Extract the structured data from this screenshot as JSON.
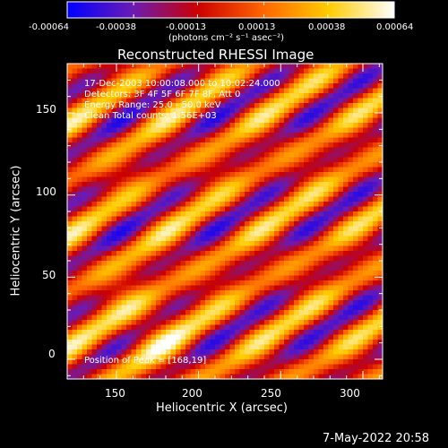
{
  "colorbar": {
    "ticks": [
      "-0.00064",
      "-0.00038",
      "-0.00013",
      "0.00013",
      "0.00038",
      "0.00064"
    ],
    "unit_label": "(photons cm⁻² s⁻¹ asec⁻²)"
  },
  "plot": {
    "title": "Reconstructed RHESSI Image",
    "annotations": [
      "17-Dec-2003 10:00:08.000 to 10:02:24.000",
      "Detectors: 3F 4F 5F 6F 7F 8F, Att 0",
      "Energy Range: 25.0 - 50.0 keV",
      "Clean      Total counts: 1.56E+03"
    ],
    "peak_label": "Position of Peak = [168,19]"
  },
  "footer": {
    "timestamp": "7-May-2022 20:58"
  },
  "chart_data": {
    "type": "heatmap",
    "title": "Reconstructed RHESSI Image",
    "xlabel": "Heliocentric X (arcsec)",
    "ylabel": "Heliocentric Y (arcsec)",
    "xlim": [
      120,
      312
    ],
    "ylim": [
      -12,
      180
    ],
    "x_ticks": [
      150,
      200,
      250,
      300
    ],
    "y_ticks": [
      0,
      50,
      100,
      150
    ],
    "colorbar_range": [
      -0.00064,
      0.00064
    ],
    "colorbar_ticks": [
      -0.00064,
      -0.00038,
      -0.00013,
      0.00013,
      0.00038,
      0.00064
    ],
    "colormap": "rainbow-blue-purple-red-yellow-white",
    "colormap_stops": [
      "#0000ff",
      "#6a1bb5",
      "#cc0000",
      "#ff6600",
      "#ffcc00",
      "#ffffff"
    ],
    "peak_position": [
      168,
      19
    ],
    "pattern": "diagonal fringes (lower-left to upper-right)"
  }
}
